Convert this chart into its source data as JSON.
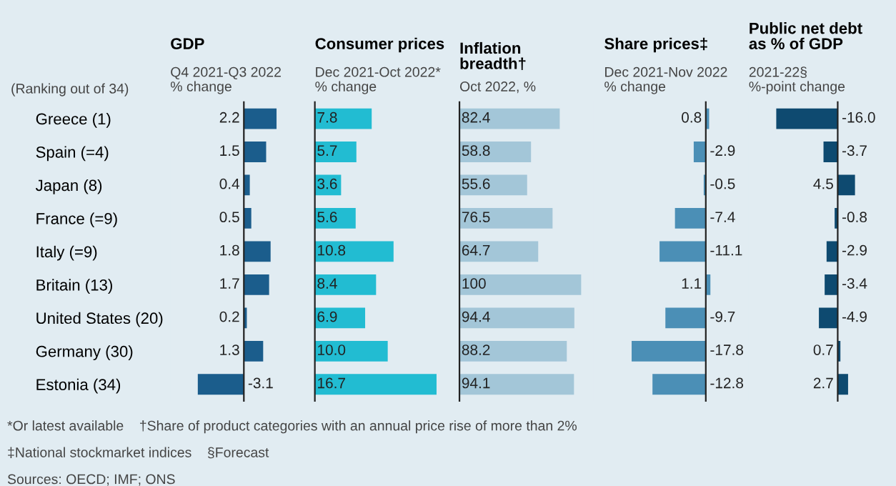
{
  "chart_data": [
    {
      "type": "bar",
      "orientation": "horizontal",
      "title": "GDP",
      "subtitle": "Q4 2021-Q3 2022\n% change",
      "ylabel": "(Ranking out of 34)",
      "categories": [
        "Greece (1)",
        "Spain (=4)",
        "Japan (8)",
        "France (=9)",
        "Italy (=9)",
        "Britain (13)",
        "United States (20)",
        "Germany (30)",
        "Estonia (34)"
      ],
      "values": [
        2.2,
        1.5,
        0.4,
        0.5,
        1.8,
        1.7,
        0.2,
        1.3,
        -3.1
      ],
      "color": "#1b5d8c",
      "data_labels": true,
      "annotations": [
        "*Or latest available    †Share of product categories with an annual price rise of more than 2%",
        "‡National stockmarket indices    §Forecast",
        "Sources: OECD; IMF; ONS"
      ]
    },
    {
      "type": "bar",
      "orientation": "horizontal",
      "title": "Consumer prices",
      "subtitle": "Dec 2021-Oct 2022*\n% change",
      "tick_labels": false,
      "values": [
        7.8,
        5.7,
        3.6,
        5.6,
        10.8,
        8.4,
        6.9,
        10.0,
        16.7
      ],
      "value_labels": [
        "7.8",
        "5.7",
        "3.6",
        "5.6",
        "10.8",
        "8.4",
        "6.9",
        "10.0",
        "16.7"
      ],
      "color": "#22bcd2"
    },
    {
      "type": "bar",
      "orientation": "horizontal",
      "title": "Inflation\nbreadth†",
      "subtitle": "Oct 2022, %",
      "tick_labels": false,
      "values": [
        82.4,
        58.8,
        55.6,
        76.5,
        64.7,
        100,
        94.4,
        88.2,
        94.1
      ],
      "color": "#a3c6d8",
      "data_labels": true
    },
    {
      "type": "bar",
      "orientation": "horizontal",
      "title": "Share prices‡",
      "subtitle": "Dec 2021-Nov 2022\n% change",
      "tick_labels": false,
      "values": [
        0.8,
        -2.9,
        -0.5,
        -7.4,
        -11.1,
        1.1,
        -9.7,
        -17.8,
        -12.8
      ],
      "color": "#4b8fb6",
      "data_labels": true
    },
    {
      "type": "bar",
      "orientation": "horizontal",
      "title": "Public net debt\nas % of GDP",
      "subtitle": "2021-22§\n%-point change",
      "tick_labels": false,
      "values": [
        -16.0,
        -3.7,
        4.5,
        -0.8,
        -2.9,
        -3.4,
        -4.9,
        0.7,
        2.7
      ],
      "value_labels": [
        "-16.0",
        "-3.7",
        "4.5",
        "-0.8",
        "-2.9",
        "-3.4",
        "-4.9",
        "0.7",
        "2.7"
      ],
      "color": "#0e4a70"
    }
  ]
}
